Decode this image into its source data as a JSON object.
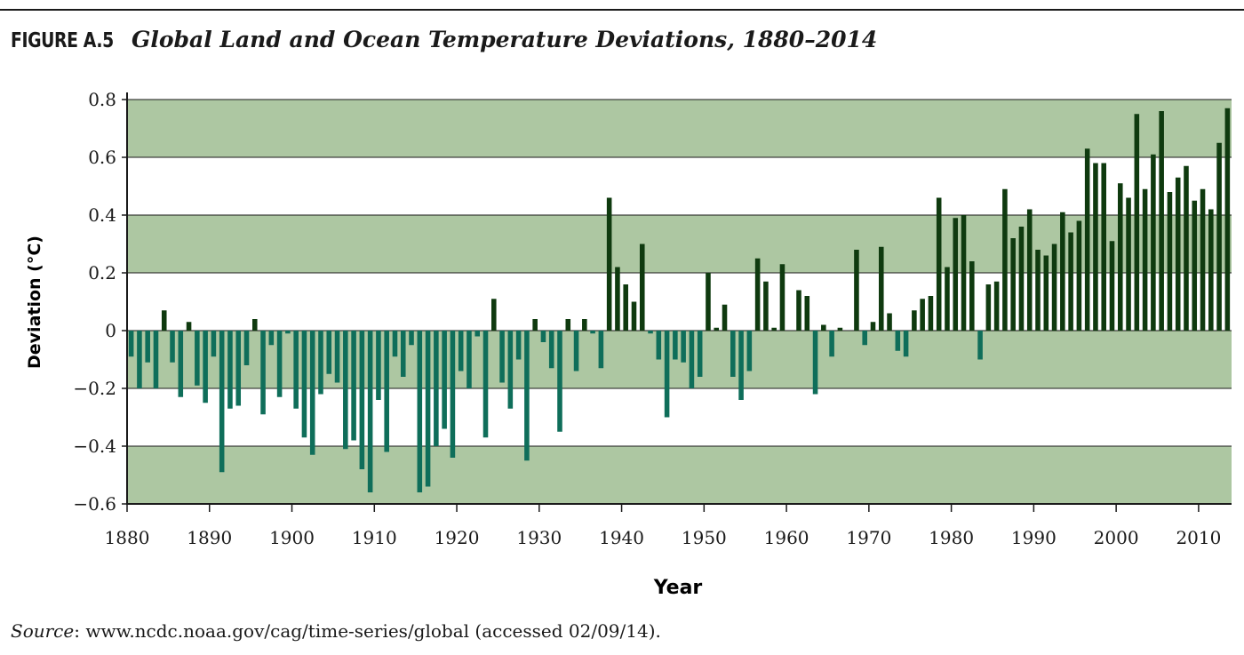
{
  "figure": {
    "label": "FIGURE A.5",
    "title": "Global Land and Ocean Temperature Deviations, 1880–2014"
  },
  "source": {
    "label": "Source",
    "text": ": www.ncdc.noaa.gov/cag/time-series/global (accessed 02/09/14)."
  },
  "colors": {
    "positive_bar": "#0f3a0f",
    "negative_bar": "#0f6e5a",
    "band_fill": "#adc7a2",
    "gridline": "#1a1a1a"
  },
  "chart_data": {
    "type": "bar",
    "title": "Global Land and Ocean Temperature Deviations, 1880–2014",
    "xlabel": "Year",
    "ylabel": "Deviation (°C)",
    "xlim": [
      1880,
      2014
    ],
    "ylim": [
      -0.6,
      0.8
    ],
    "x_ticks": [
      1880,
      1890,
      1900,
      1910,
      1920,
      1930,
      1940,
      1950,
      1960,
      1970,
      1980,
      1990,
      2000,
      2010
    ],
    "x_tick_labels": [
      "1880",
      "1890",
      "1900",
      "1910",
      "1920",
      "1930",
      "1940",
      "1950",
      "1960",
      "1970",
      "1980",
      "1990",
      "2000",
      "2010"
    ],
    "y_ticks": [
      -0.6,
      -0.4,
      -0.2,
      0,
      0.2,
      0.4,
      0.6,
      0.8
    ],
    "y_tick_labels": [
      "−0.6",
      "−0.4",
      "−0.2",
      "0",
      "0.2",
      "0.4",
      "0.6",
      "0.8"
    ],
    "shaded_bands": [
      [
        -0.6,
        -0.4
      ],
      [
        -0.2,
        0
      ],
      [
        0.2,
        0.4
      ],
      [
        0.6,
        0.8
      ]
    ],
    "grid": "horizontal",
    "x": [
      1880,
      1881,
      1882,
      1883,
      1884,
      1885,
      1886,
      1887,
      1888,
      1889,
      1890,
      1891,
      1892,
      1893,
      1894,
      1895,
      1896,
      1897,
      1898,
      1899,
      1900,
      1901,
      1902,
      1903,
      1904,
      1905,
      1906,
      1907,
      1908,
      1909,
      1910,
      1911,
      1912,
      1913,
      1914,
      1915,
      1916,
      1917,
      1918,
      1919,
      1920,
      1921,
      1922,
      1923,
      1924,
      1925,
      1926,
      1927,
      1928,
      1929,
      1930,
      1931,
      1932,
      1933,
      1934,
      1935,
      1936,
      1937,
      1938,
      1939,
      1940,
      1941,
      1942,
      1943,
      1944,
      1945,
      1946,
      1947,
      1948,
      1949,
      1950,
      1951,
      1952,
      1953,
      1954,
      1955,
      1956,
      1957,
      1958,
      1959,
      1960,
      1961,
      1962,
      1963,
      1964,
      1965,
      1966,
      1967,
      1968,
      1969,
      1970,
      1971,
      1972,
      1973,
      1974,
      1975,
      1976,
      1977,
      1978,
      1979,
      1980,
      1981,
      1982,
      1983,
      1984,
      1985,
      1986,
      1987,
      1988,
      1989,
      1990,
      1991,
      1992,
      1993,
      1994,
      1995,
      1996,
      1997,
      1998,
      1999,
      2000,
      2001,
      2002,
      2003,
      2004,
      2005,
      2006,
      2007,
      2008,
      2009,
      2010,
      2011,
      2012,
      2013
    ],
    "values": [
      -0.09,
      -0.2,
      -0.11,
      -0.2,
      0.07,
      -0.11,
      -0.23,
      0.03,
      -0.19,
      -0.25,
      -0.09,
      -0.49,
      -0.27,
      -0.26,
      -0.12,
      0.04,
      -0.29,
      -0.05,
      -0.23,
      -0.01,
      -0.27,
      -0.37,
      -0.43,
      -0.22,
      -0.15,
      -0.18,
      -0.41,
      -0.38,
      -0.48,
      -0.56,
      -0.24,
      -0.42,
      -0.09,
      -0.16,
      -0.05,
      -0.56,
      -0.54,
      -0.4,
      -0.34,
      -0.44,
      -0.14,
      -0.2,
      -0.02,
      -0.37,
      0.11,
      -0.18,
      -0.27,
      -0.1,
      -0.45,
      0.04,
      -0.04,
      -0.13,
      -0.35,
      0.04,
      -0.14,
      0.04,
      -0.01,
      -0.13,
      0.46,
      0.22,
      0.16,
      0.1,
      0.3,
      -0.01,
      -0.1,
      -0.3,
      -0.1,
      -0.11,
      -0.2,
      -0.16,
      0.2,
      0.01,
      0.09,
      -0.16,
      -0.24,
      -0.14,
      0.25,
      0.17,
      0.01,
      0.23,
      0.0,
      0.14,
      0.12,
      -0.22,
      0.02,
      -0.09,
      0.01,
      0.0,
      0.28,
      -0.05,
      0.03,
      0.29,
      0.06,
      -0.07,
      -0.09,
      0.07,
      0.11,
      0.12,
      0.46,
      0.22,
      0.39,
      0.4,
      0.24,
      -0.1,
      0.16,
      0.17,
      0.49,
      0.32,
      0.36,
      0.42,
      0.28,
      0.26,
      0.3,
      0.41,
      0.34,
      0.38,
      0.63,
      0.58,
      0.58,
      0.31,
      0.51,
      0.46,
      0.75,
      0.49,
      0.61,
      0.76,
      0.48,
      0.53,
      0.57,
      0.45,
      0.49,
      0.42,
      0.65,
      0.77
    ]
  }
}
